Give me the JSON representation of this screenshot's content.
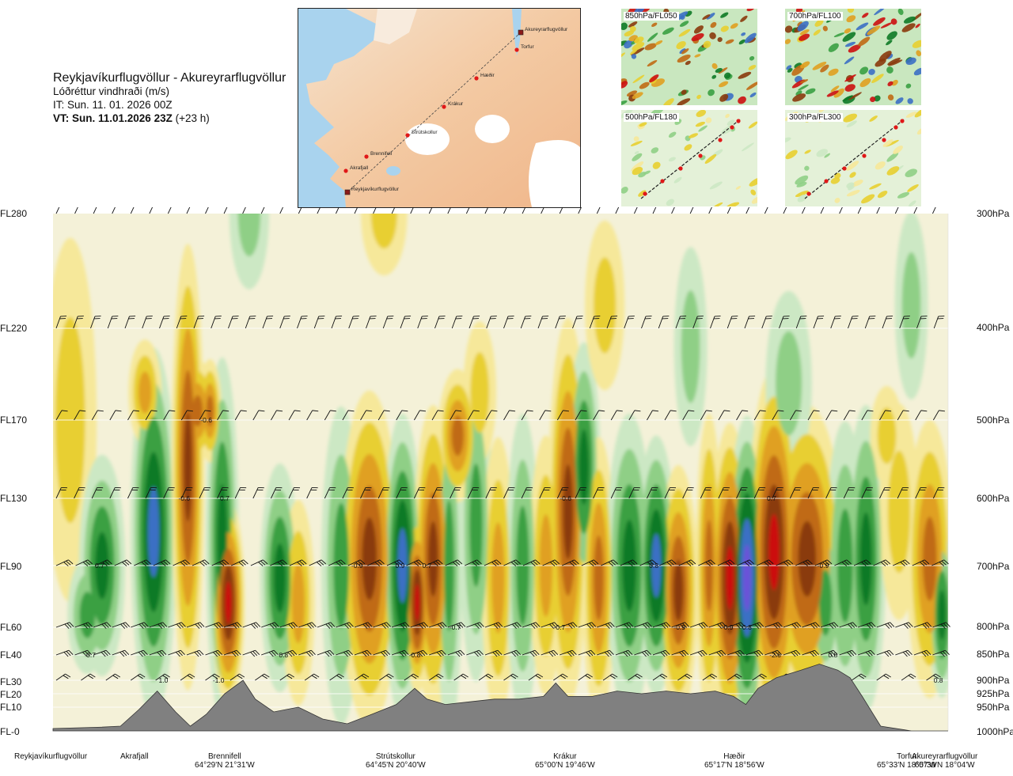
{
  "header": {
    "route": "Reykjavíkurflugvöllur - Akureyrarflugvöllur",
    "variable": "Lóðréttur vindhraði (m/s)",
    "initial_time": "IT: Sun. 11. 01. 2026 00Z",
    "valid_time_bold": "VT: Sun. 11.01.2026 23Z",
    "valid_time_offset": " (+23 h)"
  },
  "map": {
    "points": [
      "Akureyrarflugvöllur",
      "Torfur",
      "Hæðir",
      "Krákur",
      "Strútskollur",
      "Brennifell",
      "Akrafjall",
      "Reykjavíkurflugvöllur"
    ]
  },
  "thumbnails": [
    "850hPa/FL050",
    "700hPa/FL100",
    "500hPa/FL180",
    "300hPa/FL300"
  ],
  "colors": {
    "strong_up": "#2a0a8a",
    "up_4": "#6a52d8",
    "up_3": "#3b6fc4",
    "up_2": "#0e7a26",
    "up_1": "#3aa043",
    "weak_up": "#8fcf86",
    "faint_up": "#cce8c4",
    "neutral": "#f4f1d8",
    "faint_down": "#f6e89a",
    "weak_down": "#e8cf30",
    "down_1": "#e0a020",
    "down_2": "#c06a14",
    "down_3": "#8a3a0c",
    "strong_down": "#cc1010",
    "terrain": "#808080"
  },
  "levels": {
    "left": [
      "FL280",
      "FL220",
      "FL170",
      "FL130",
      "FL90",
      "FL60",
      "FL40",
      "FL30",
      "FL20",
      "FL10",
      "FL-0"
    ],
    "right": [
      "300hPa",
      "400hPa",
      "500hPa",
      "600hPa",
      "700hPa",
      "800hPa",
      "850hPa",
      "900hPa",
      "925hPa",
      "950hPa",
      "1000hPa"
    ]
  },
  "locations": [
    {
      "name": "Reykjavíkurflugvöllur",
      "coord": ""
    },
    {
      "name": "Akrafjall",
      "coord": ""
    },
    {
      "name": "Brennifell",
      "coord": "64°29'N 21°31'W"
    },
    {
      "name": "Strútskollur",
      "coord": "64°45'N 20°40'W"
    },
    {
      "name": "Krákur",
      "coord": "65°00'N 19°46'W"
    },
    {
      "name": "Hæðir",
      "coord": "65°17'N 18°56'W"
    },
    {
      "name": "Torfur",
      "coord": "65°33'N 18°07'W"
    },
    {
      "name": "Akureyrarflugvöllur",
      "coord": "65°39'N 18°04'W"
    }
  ],
  "chart_data": {
    "type": "heatmap",
    "title": "Lóðréttur vindhraði (m/s)",
    "xlabel": "",
    "ylabel": "",
    "x_categories": [
      "Reykjavíkurflugvöllur",
      "Akrafjall",
      "Brennifell",
      "Strútskollur",
      "Krákur",
      "Hæðir",
      "Torfur",
      "Akureyrarflugvöllur"
    ],
    "y_levels_hpa": [
      300,
      400,
      500,
      600,
      700,
      800,
      850,
      900,
      925,
      950,
      1000
    ],
    "grid": true,
    "labeled_values": [
      {
        "x_km": 38,
        "p": 700,
        "v": "0.7"
      },
      {
        "x_km": 31,
        "p": 850,
        "v": "0.7"
      },
      {
        "x_km": 90,
        "p": 900,
        "v": "1.0"
      },
      {
        "x_km": 125,
        "p": 500,
        "v": "-0.6"
      },
      {
        "x_km": 107,
        "p": 600,
        "v": "-0.6"
      },
      {
        "x_km": 140,
        "p": 600,
        "v": "0.7"
      },
      {
        "x_km": 135,
        "p": 900,
        "v": "-1.0"
      },
      {
        "x_km": 188,
        "p": 850,
        "v": "0.8"
      },
      {
        "x_km": 248,
        "p": 700,
        "v": "-0.9"
      },
      {
        "x_km": 283,
        "p": 700,
        "v": "0.9"
      },
      {
        "x_km": 305,
        "p": 700,
        "v": "0.7"
      },
      {
        "x_km": 295,
        "p": 850,
        "v": "-0.8"
      },
      {
        "x_km": 328,
        "p": 800,
        "v": "-0.7"
      },
      {
        "x_km": 418,
        "p": 600,
        "v": "-0.6"
      },
      {
        "x_km": 413,
        "p": 800,
        "v": "-0.7"
      },
      {
        "x_km": 490,
        "p": 700,
        "v": "0.8"
      },
      {
        "x_km": 511,
        "p": 800,
        "v": "-0.9"
      },
      {
        "x_km": 550,
        "p": 800,
        "v": "-0.9"
      },
      {
        "x_km": 566,
        "p": 800,
        "v": "0.8"
      },
      {
        "x_km": 586,
        "p": 600,
        "v": "0.7"
      },
      {
        "x_km": 589,
        "p": 850,
        "v": "-2.6"
      },
      {
        "x_km": 628,
        "p": 700,
        "v": "-0.9"
      },
      {
        "x_km": 636,
        "p": 850,
        "v": "0.8"
      },
      {
        "x_km": 722,
        "p": 900,
        "v": "0.8"
      }
    ],
    "terrain_elevation_hpa": [
      [
        0,
        995
      ],
      [
        40,
        992
      ],
      [
        55,
        990
      ],
      [
        70,
        955
      ],
      [
        85,
        920
      ],
      [
        100,
        960
      ],
      [
        112,
        990
      ],
      [
        125,
        965
      ],
      [
        140,
        925
      ],
      [
        155,
        900
      ],
      [
        165,
        935
      ],
      [
        180,
        960
      ],
      [
        200,
        950
      ],
      [
        220,
        975
      ],
      [
        240,
        985
      ],
      [
        260,
        965
      ],
      [
        280,
        945
      ],
      [
        295,
        915
      ],
      [
        305,
        935
      ],
      [
        320,
        945
      ],
      [
        340,
        940
      ],
      [
        360,
        935
      ],
      [
        380,
        935
      ],
      [
        400,
        930
      ],
      [
        410,
        905
      ],
      [
        420,
        930
      ],
      [
        440,
        930
      ],
      [
        460,
        920
      ],
      [
        480,
        925
      ],
      [
        500,
        920
      ],
      [
        520,
        925
      ],
      [
        540,
        920
      ],
      [
        555,
        930
      ],
      [
        565,
        945
      ],
      [
        575,
        915
      ],
      [
        590,
        895
      ],
      [
        610,
        880
      ],
      [
        625,
        868
      ],
      [
        640,
        880
      ],
      [
        650,
        895
      ],
      [
        660,
        930
      ],
      [
        675,
        990
      ],
      [
        700,
        1000
      ],
      [
        730,
        1000
      ]
    ]
  }
}
